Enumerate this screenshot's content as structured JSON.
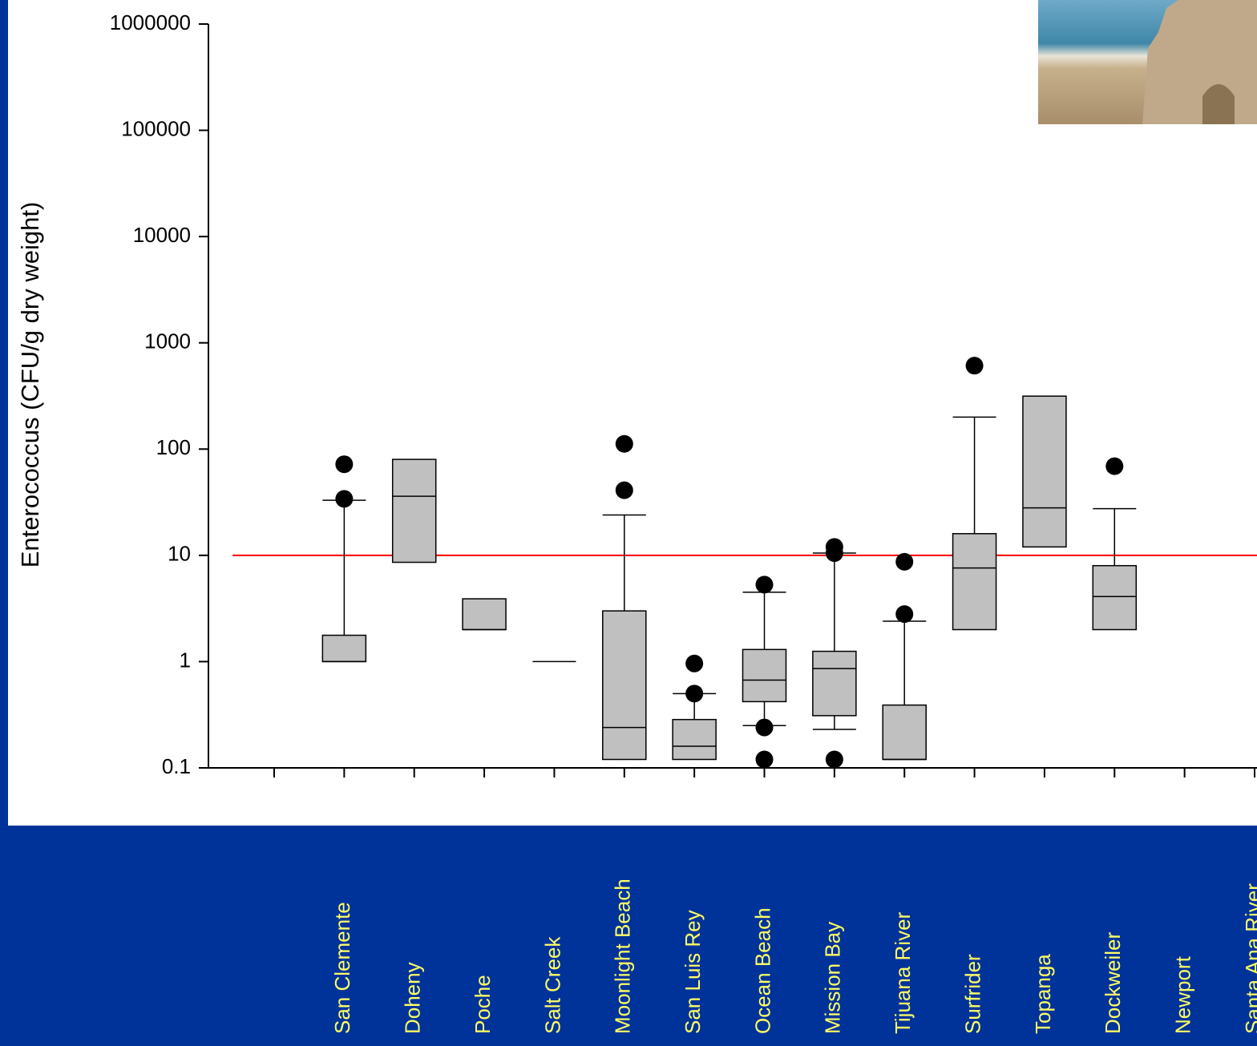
{
  "chart_data": {
    "type": "box",
    "y_label": "Enterococcus (CFU/g dry weight)",
    "log_scale": true,
    "ylim": [
      0.1,
      1000000
    ],
    "yticks": [
      0.1,
      1,
      10,
      100,
      1000,
      10000,
      100000,
      1000000
    ],
    "categories": [
      null,
      "San Clemente",
      "Doheny",
      "Poche",
      "Salt Creek",
      "Moonlight Beach",
      "San Luis Rey",
      "Ocean Beach",
      "Mission Bay",
      "Tijuana River",
      "Surfrider",
      "Topanga",
      "Dockweiler",
      "Newport",
      "Santa Ana River"
    ],
    "box_color": "#c0c0c0",
    "label_color": "#ffff66",
    "boxes": [
      null,
      {
        "q1": 1,
        "median": 1,
        "q3": 1.77,
        "whisker_high": 33,
        "outliers": [
          72,
          34
        ]
      },
      {
        "q1": 8.6,
        "median": 36,
        "q3": 80
      },
      {
        "q1": 2,
        "median": 2,
        "q3": 3.9
      },
      {
        "q1": 1,
        "median": 1,
        "q3": 1
      },
      {
        "q1": 0.12,
        "median": 0.24,
        "q3": 3,
        "whisker_high": 24,
        "outliers": [
          112,
          41
        ]
      },
      {
        "q1": 0.12,
        "median": 0.16,
        "q3": 0.285,
        "whisker_high": 0.5,
        "outliers": [
          0.96,
          0.5
        ]
      },
      {
        "q1": 0.42,
        "median": 0.67,
        "q3": 1.3,
        "whisker_low": 0.25,
        "whisker_high": 4.5,
        "outliers": [
          5.3,
          0.24,
          0.12
        ]
      },
      {
        "q1": 0.31,
        "median": 0.86,
        "q3": 1.25,
        "whisker_low": 0.23,
        "whisker_high": 10.5,
        "outliers": [
          12,
          10.5,
          0.12
        ]
      },
      {
        "q1": 0.12,
        "median": 0.12,
        "q3": 0.39,
        "whisker_high": 2.4,
        "outliers": [
          8.7,
          2.8
        ]
      },
      {
        "q1": 2,
        "median": 7.6,
        "q3": 16,
        "whisker_high": 200,
        "outliers": [
          610
        ]
      },
      {
        "q1": 12,
        "median": 28,
        "q3": 315
      },
      {
        "q1": 2,
        "median": 4.1,
        "q3": 8,
        "whisker_high": 27.5,
        "outliers": [
          69
        ]
      },
      null,
      null
    ],
    "reference_line": {
      "value": 10,
      "color": "#ff0000"
    }
  }
}
